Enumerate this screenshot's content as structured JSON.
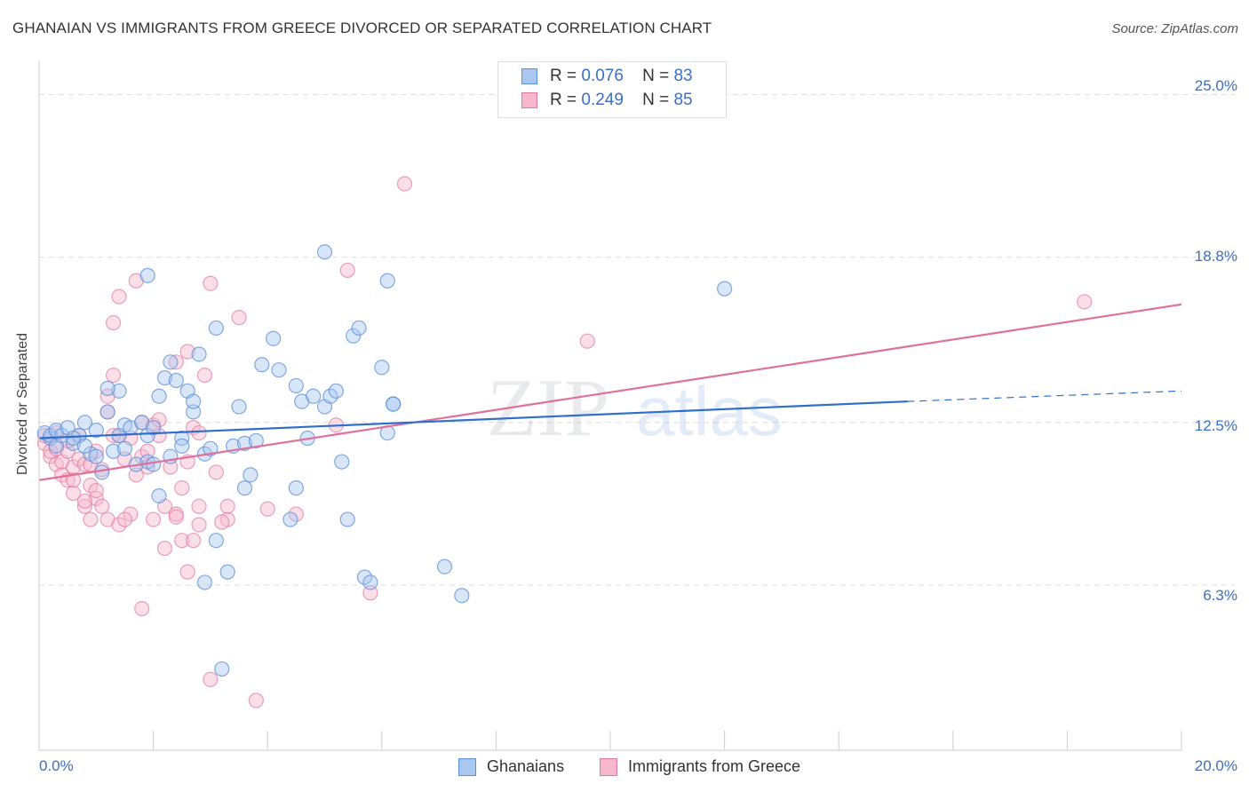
{
  "header": {
    "title": "GHANAIAN VS IMMIGRANTS FROM GREECE DIVORCED OR SEPARATED CORRELATION CHART",
    "source": "Source: ZipAtlas.com"
  },
  "watermark": {
    "part1": "ZIP",
    "part2": "atlas"
  },
  "legend_stats": [
    {
      "r_label": "R =",
      "r_value": "0.076",
      "n_label": "N =",
      "n_value": "83"
    },
    {
      "r_label": "R =",
      "r_value": "0.249",
      "n_label": "N =",
      "n_value": "85"
    }
  ],
  "colors": {
    "blue_fill": "#a9c7f0",
    "blue_stroke": "#5b8fd8",
    "blue_line": "#2f6fcb",
    "pink_fill": "#f7b8cc",
    "pink_stroke": "#e27aa0",
    "pink_line": "#e0709a",
    "tick_text": "#3a6fc4",
    "grid": "#dddddd"
  },
  "chart_data": {
    "type": "scatter",
    "title": "GHANAIAN VS IMMIGRANTS FROM GREECE DIVORCED OR SEPARATED CORRELATION CHART",
    "xlabel": "",
    "ylabel": "Divorced or Separated",
    "xlim": [
      0,
      20
    ],
    "ylim": [
      0,
      26
    ],
    "x_tick_labels": [
      "0.0%",
      "20.0%"
    ],
    "y_ticks": [
      6.3,
      12.5,
      18.8,
      25.0
    ],
    "y_tick_labels": [
      "6.3%",
      "12.5%",
      "18.8%",
      "25.0%"
    ],
    "grid": true,
    "legend_position": "bottom-center",
    "series": [
      {
        "name": "Ghanaians",
        "R": 0.076,
        "N": 83,
        "trend": {
          "x0": 0,
          "y0": 11.9,
          "x1": 15.2,
          "y1": 13.3,
          "dash_to_x": 20,
          "dash_to_y": 13.7
        },
        "points": [
          [
            0.1,
            12.1
          ],
          [
            0.2,
            11.9
          ],
          [
            0.2,
            12.0
          ],
          [
            0.3,
            11.6
          ],
          [
            0.3,
            12.2
          ],
          [
            0.4,
            12.0
          ],
          [
            0.5,
            12.3
          ],
          [
            0.6,
            11.7
          ],
          [
            0.7,
            12.0
          ],
          [
            0.8,
            12.5
          ],
          [
            0.9,
            11.3
          ],
          [
            1.0,
            11.2
          ],
          [
            1.1,
            10.6
          ],
          [
            1.2,
            12.9
          ],
          [
            1.3,
            11.4
          ],
          [
            1.4,
            12.0
          ],
          [
            1.4,
            13.7
          ],
          [
            1.5,
            12.4
          ],
          [
            1.6,
            12.3
          ],
          [
            1.7,
            10.9
          ],
          [
            1.8,
            12.5
          ],
          [
            1.9,
            12.0
          ],
          [
            1.9,
            11.0
          ],
          [
            2.0,
            12.3
          ],
          [
            2.1,
            13.5
          ],
          [
            2.1,
            9.7
          ],
          [
            2.2,
            14.2
          ],
          [
            2.3,
            14.8
          ],
          [
            2.3,
            11.2
          ],
          [
            2.4,
            14.1
          ],
          [
            2.5,
            11.9
          ],
          [
            2.5,
            11.6
          ],
          [
            2.6,
            13.7
          ],
          [
            2.7,
            12.9
          ],
          [
            2.7,
            13.3
          ],
          [
            2.8,
            15.1
          ],
          [
            2.9,
            11.3
          ],
          [
            3.0,
            11.5
          ],
          [
            3.1,
            16.1
          ],
          [
            3.1,
            8.0
          ],
          [
            3.3,
            6.8
          ],
          [
            3.4,
            11.6
          ],
          [
            3.5,
            13.1
          ],
          [
            3.6,
            11.7
          ],
          [
            3.7,
            10.5
          ],
          [
            3.8,
            11.8
          ],
          [
            3.9,
            14.7
          ],
          [
            4.1,
            15.7
          ],
          [
            4.2,
            14.5
          ],
          [
            4.4,
            8.8
          ],
          [
            4.5,
            13.9
          ],
          [
            4.6,
            13.3
          ],
          [
            4.7,
            11.9
          ],
          [
            4.8,
            13.5
          ],
          [
            5.0,
            13.1
          ],
          [
            5.1,
            13.5
          ],
          [
            5.2,
            13.7
          ],
          [
            5.3,
            11.0
          ],
          [
            5.4,
            8.8
          ],
          [
            5.5,
            15.8
          ],
          [
            5.6,
            16.1
          ],
          [
            5.7,
            6.6
          ],
          [
            5.8,
            6.4
          ],
          [
            6.0,
            14.6
          ],
          [
            6.2,
            13.2
          ],
          [
            6.1,
            12.1
          ],
          [
            7.1,
            7.0
          ],
          [
            7.4,
            5.9
          ],
          [
            6.2,
            13.2
          ],
          [
            2.9,
            6.4
          ],
          [
            1.9,
            18.1
          ],
          [
            5.0,
            19.0
          ],
          [
            6.1,
            17.9
          ],
          [
            12.0,
            17.6
          ],
          [
            3.2,
            3.1
          ],
          [
            4.5,
            10.0
          ],
          [
            1.2,
            13.8
          ],
          [
            1.0,
            12.2
          ],
          [
            0.6,
            11.9
          ],
          [
            0.8,
            11.6
          ],
          [
            3.6,
            10.0
          ],
          [
            2.0,
            10.9
          ],
          [
            1.5,
            11.5
          ]
        ]
      },
      {
        "name": "Immigrants from Greece",
        "R": 0.249,
        "N": 85,
        "trend": {
          "x0": 0,
          "y0": 10.3,
          "x1": 20,
          "y1": 17.0
        },
        "points": [
          [
            0.1,
            11.7
          ],
          [
            0.2,
            11.2
          ],
          [
            0.2,
            11.4
          ],
          [
            0.3,
            10.9
          ],
          [
            0.3,
            11.5
          ],
          [
            0.4,
            10.5
          ],
          [
            0.4,
            11.0
          ],
          [
            0.5,
            10.3
          ],
          [
            0.5,
            11.4
          ],
          [
            0.6,
            9.8
          ],
          [
            0.6,
            10.8
          ],
          [
            0.7,
            11.1
          ],
          [
            0.7,
            12.0
          ],
          [
            0.8,
            9.3
          ],
          [
            0.8,
            10.9
          ],
          [
            0.9,
            10.1
          ],
          [
            0.9,
            8.8
          ],
          [
            1.0,
            11.4
          ],
          [
            1.0,
            9.6
          ],
          [
            1.1,
            9.3
          ],
          [
            1.1,
            10.7
          ],
          [
            1.2,
            8.8
          ],
          [
            1.2,
            13.5
          ],
          [
            1.3,
            16.3
          ],
          [
            1.3,
            14.3
          ],
          [
            1.4,
            12.0
          ],
          [
            1.4,
            8.6
          ],
          [
            1.5,
            11.1
          ],
          [
            1.6,
            11.9
          ],
          [
            1.6,
            9.0
          ],
          [
            1.7,
            10.5
          ],
          [
            1.7,
            17.9
          ],
          [
            1.8,
            12.5
          ],
          [
            1.8,
            11.2
          ],
          [
            1.9,
            10.8
          ],
          [
            2.0,
            12.4
          ],
          [
            2.0,
            8.8
          ],
          [
            2.1,
            12.0
          ],
          [
            2.2,
            9.3
          ],
          [
            2.2,
            7.7
          ],
          [
            2.3,
            10.8
          ],
          [
            2.4,
            9.0
          ],
          [
            2.4,
            14.8
          ],
          [
            2.5,
            8.0
          ],
          [
            2.5,
            10.0
          ],
          [
            2.6,
            11.0
          ],
          [
            2.6,
            6.8
          ],
          [
            2.7,
            12.3
          ],
          [
            2.8,
            8.6
          ],
          [
            2.8,
            9.3
          ],
          [
            2.9,
            14.3
          ],
          [
            3.0,
            17.8
          ],
          [
            3.0,
            2.7
          ],
          [
            3.1,
            10.6
          ],
          [
            3.3,
            8.8
          ],
          [
            3.3,
            9.3
          ],
          [
            3.5,
            16.5
          ],
          [
            3.8,
            1.9
          ],
          [
            4.0,
            9.2
          ],
          [
            4.5,
            9.0
          ],
          [
            5.2,
            12.4
          ],
          [
            5.4,
            18.3
          ],
          [
            5.8,
            6.0
          ],
          [
            6.4,
            21.6
          ],
          [
            9.6,
            15.6
          ],
          [
            18.3,
            17.1
          ],
          [
            1.8,
            5.4
          ],
          [
            1.4,
            17.3
          ],
          [
            1.2,
            12.9
          ],
          [
            0.9,
            10.9
          ],
          [
            0.8,
            9.5
          ],
          [
            0.6,
            10.3
          ],
          [
            0.5,
            11.8
          ],
          [
            0.3,
            12.1
          ],
          [
            0.1,
            12.0
          ],
          [
            2.4,
            8.9
          ],
          [
            2.1,
            12.6
          ],
          [
            1.9,
            11.4
          ],
          [
            1.5,
            8.8
          ],
          [
            1.0,
            9.9
          ],
          [
            2.7,
            8.0
          ],
          [
            2.8,
            12.1
          ],
          [
            3.2,
            8.7
          ],
          [
            2.6,
            15.2
          ],
          [
            1.3,
            12.0
          ]
        ]
      }
    ]
  },
  "legend_bottom": [
    {
      "label": "Ghanaians"
    },
    {
      "label": "Immigrants from Greece"
    }
  ]
}
